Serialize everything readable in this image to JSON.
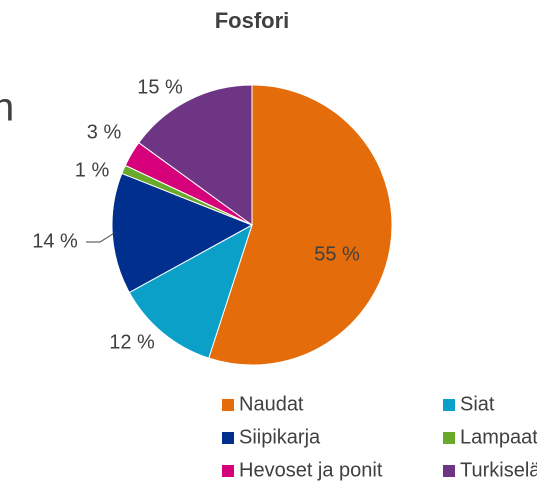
{
  "chart_data": {
    "type": "pie",
    "title": "Fosfori",
    "categories": [
      "Naudat",
      "Siat",
      "Siipikarja",
      "Lampaat ja vuohet",
      "Hevoset ja ponit",
      "Turkiseläimet"
    ],
    "values": [
      55,
      12,
      14,
      1,
      3,
      15
    ],
    "value_labels": [
      "55 %",
      "12 %",
      "14 %",
      "1 %",
      "3 %",
      "15 %"
    ],
    "colors": [
      "#e46c0a",
      "#0ba0c8",
      "#002f8e",
      "#6aaa2a",
      "#d6007a",
      "#6f3585"
    ],
    "legend": "bottom",
    "background_text": "n"
  }
}
